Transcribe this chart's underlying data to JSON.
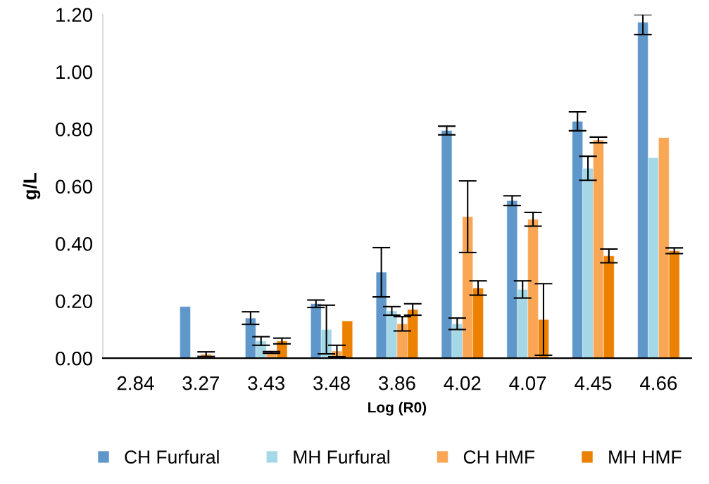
{
  "chart_data": {
    "type": "bar",
    "xlabel": "Log (R0)",
    "ylabel": "g/L",
    "categories": [
      "2.84",
      "3.27",
      "3.43",
      "3.48",
      "3.86",
      "4.02",
      "4.07",
      "4.45",
      "4.66"
    ],
    "series": [
      {
        "name": "CH Furfural",
        "color": "#5f97cb",
        "values": [
          null,
          0.18,
          0.14,
          0.19,
          0.3,
          0.795,
          0.55,
          0.827,
          1.173
        ],
        "errors": [
          null,
          null,
          0.022,
          0.013,
          0.086,
          0.015,
          0.017,
          0.033,
          [
            1.13,
            1.2
          ]
        ]
      },
      {
        "name": "MH Furfural",
        "color": "#a5d8e6",
        "values": [
          null,
          null,
          0.06,
          0.1,
          0.165,
          0.12,
          0.24,
          0.663,
          0.7
        ],
        "errors": [
          null,
          null,
          0.015,
          0.085,
          0.015,
          0.02,
          0.03,
          0.042,
          null
        ]
      },
      {
        "name": "CH HMF",
        "color": "#f9a755",
        "values": [
          null,
          0.014,
          0.02,
          0.025,
          0.12,
          0.494,
          0.485,
          0.762,
          0.77
        ],
        "errors": [
          null,
          0.008,
          0.003,
          0.02,
          0.025,
          0.125,
          0.024,
          0.01,
          null
        ]
      },
      {
        "name": "MH HMF",
        "color": "#ec8100",
        "values": [
          null,
          null,
          0.06,
          0.13,
          0.17,
          0.245,
          0.135,
          0.357,
          0.375
        ],
        "errors": [
          null,
          null,
          0.01,
          null,
          0.02,
          0.025,
          0.125,
          0.024,
          0.01
        ]
      }
    ],
    "ylim": [
      0,
      1.2
    ],
    "yticks": [
      {
        "value": 0,
        "label": "0.00"
      },
      {
        "value": 0.2,
        "label": "0.20"
      },
      {
        "value": 0.4,
        "label": "0.40"
      },
      {
        "value": 0.6,
        "label": "0.60"
      },
      {
        "value": 0.8,
        "label": "0.80"
      },
      {
        "value": 1.0,
        "label": "1.00"
      },
      {
        "value": 1.2,
        "label": "1.20"
      }
    ],
    "legend": "bottom"
  }
}
